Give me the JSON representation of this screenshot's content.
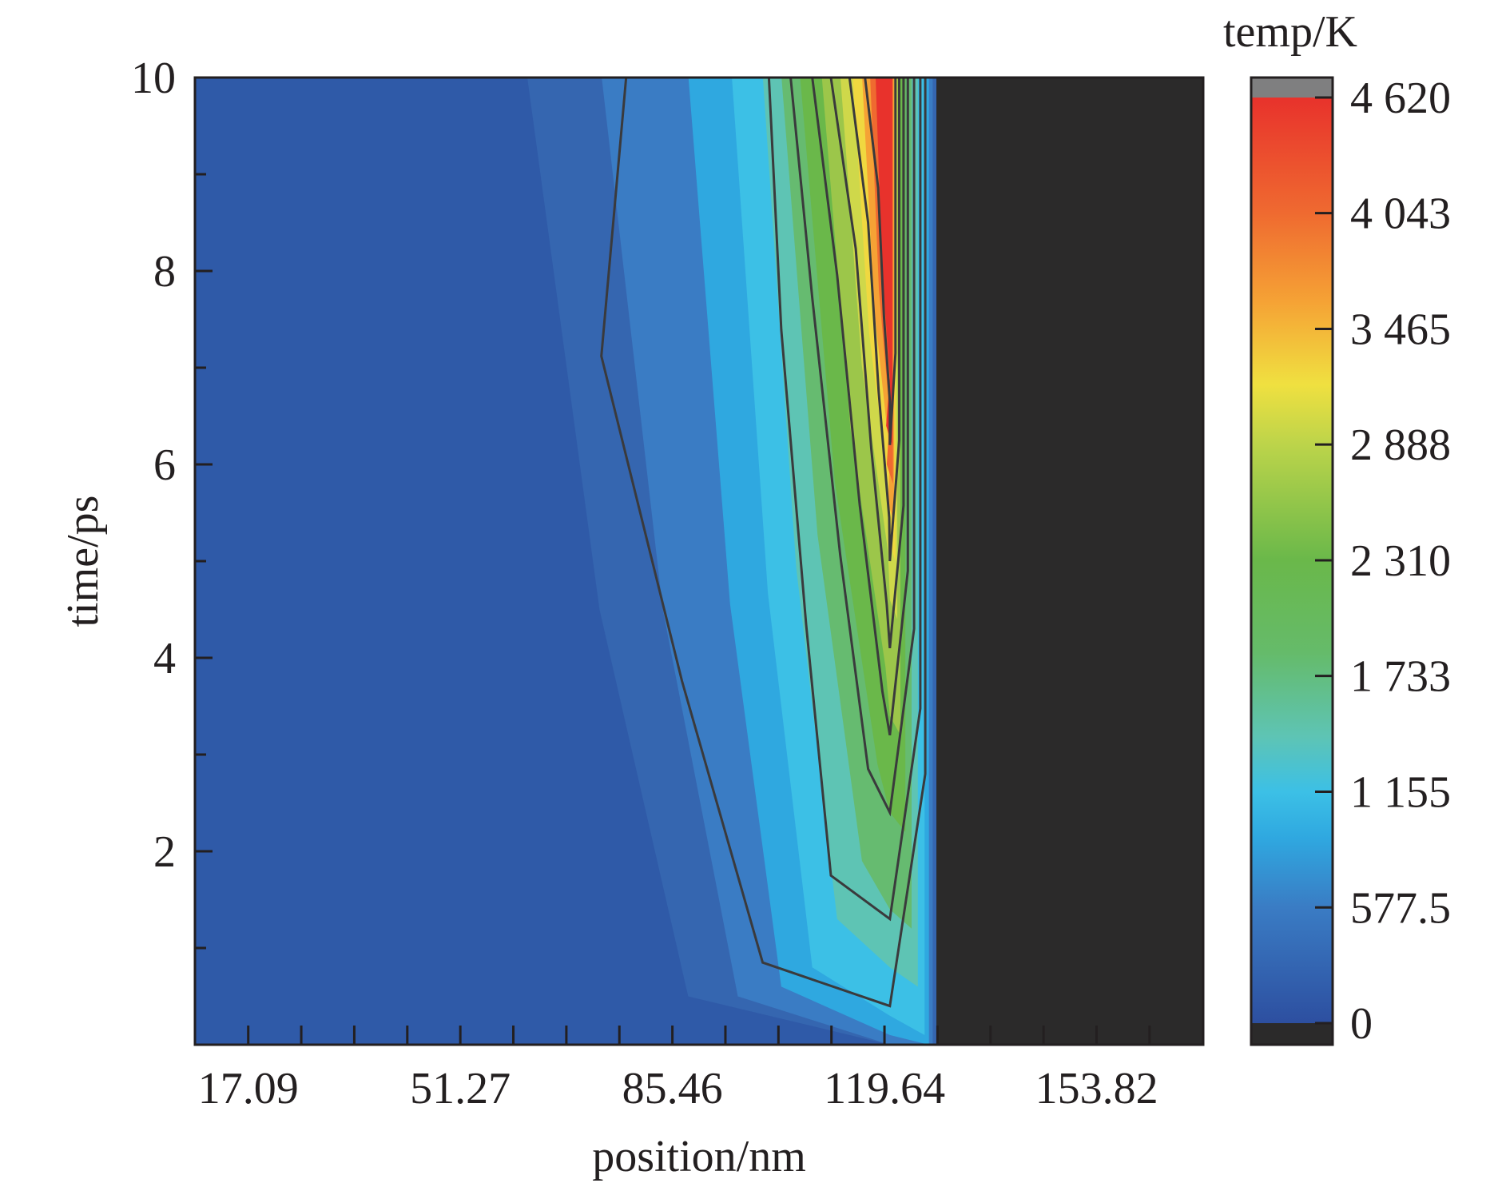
{
  "chart_data": {
    "type": "heatmap",
    "xlabel": "position/nm",
    "ylabel": "time/ps",
    "x_tick_labels": [
      "17.09",
      "51.27",
      "85.46",
      "119.64",
      "153.82"
    ],
    "x_tick_values": [
      17.09,
      51.27,
      85.46,
      119.64,
      153.82
    ],
    "xlim": [
      8.5,
      171.0
    ],
    "y_tick_labels": [
      "2",
      "4",
      "6",
      "8",
      "10"
    ],
    "y_tick_values": [
      2,
      4,
      6,
      8,
      10
    ],
    "ylim": [
      0,
      10
    ],
    "colorbar": {
      "title": "temp/K",
      "tick_labels": [
        "4 620",
        "4 043",
        "3 465",
        "2 888",
        "2 310",
        "1 733",
        "1 155",
        "577.5",
        "0"
      ],
      "tick_values": [
        4620,
        4043,
        3465,
        2888,
        2310,
        1733,
        1155,
        577.5,
        0
      ],
      "range": [
        0,
        4620
      ],
      "below_min_color": "#2b2a2a",
      "above_max_color": "#7f7f80"
    },
    "regions": {
      "background_color": "#2f5aa8",
      "solid_region_color": "#2b2a2a",
      "solid_region_start_x": 128.0
    },
    "contour_levels_K": [
      577.5,
      1155,
      1732.5,
      2310,
      2887.5,
      3465,
      4042.5
    ],
    "hot_spot": {
      "x": 120.5,
      "peak_temp_K": 4620,
      "time_range": [
        6.0,
        10.0
      ]
    },
    "colors": {
      "blue_dark": "#2f5aa8",
      "blue": "#3b82c4",
      "cyan": "#2fb6e6",
      "teal": "#5fc3b0",
      "green": "#6ab84a",
      "yellow_green": "#c7d84a",
      "yellow": "#f0e040",
      "orange": "#f39a35",
      "red": "#e8322c"
    }
  }
}
